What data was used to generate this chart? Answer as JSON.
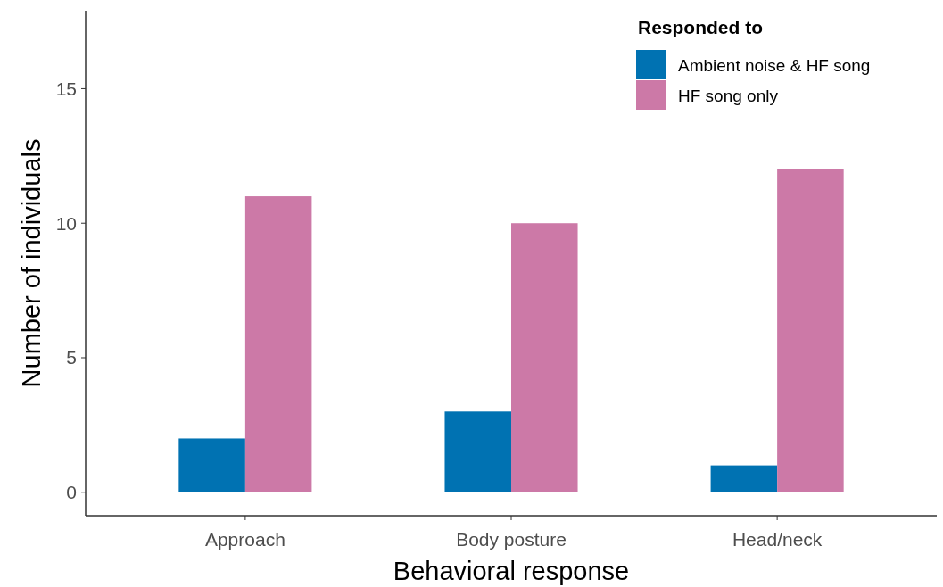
{
  "chart_data": {
    "type": "bar",
    "xlabel": "Behavioral response",
    "ylabel": "Number of individuals",
    "legend_title": "Responded to",
    "categories": [
      "Approach",
      "Body posture",
      "Head/neck"
    ],
    "series": [
      {
        "name": "Ambient noise & HF song",
        "color": "#0072b2",
        "values": [
          2,
          3,
          1
        ]
      },
      {
        "name": "HF song only",
        "color": "#cc79a7",
        "values": [
          11,
          10,
          12
        ]
      }
    ],
    "ylim": [
      -0.87,
      17.9
    ],
    "yticks": [
      0,
      5,
      10,
      15
    ],
    "grid": false,
    "legend": "top right"
  }
}
